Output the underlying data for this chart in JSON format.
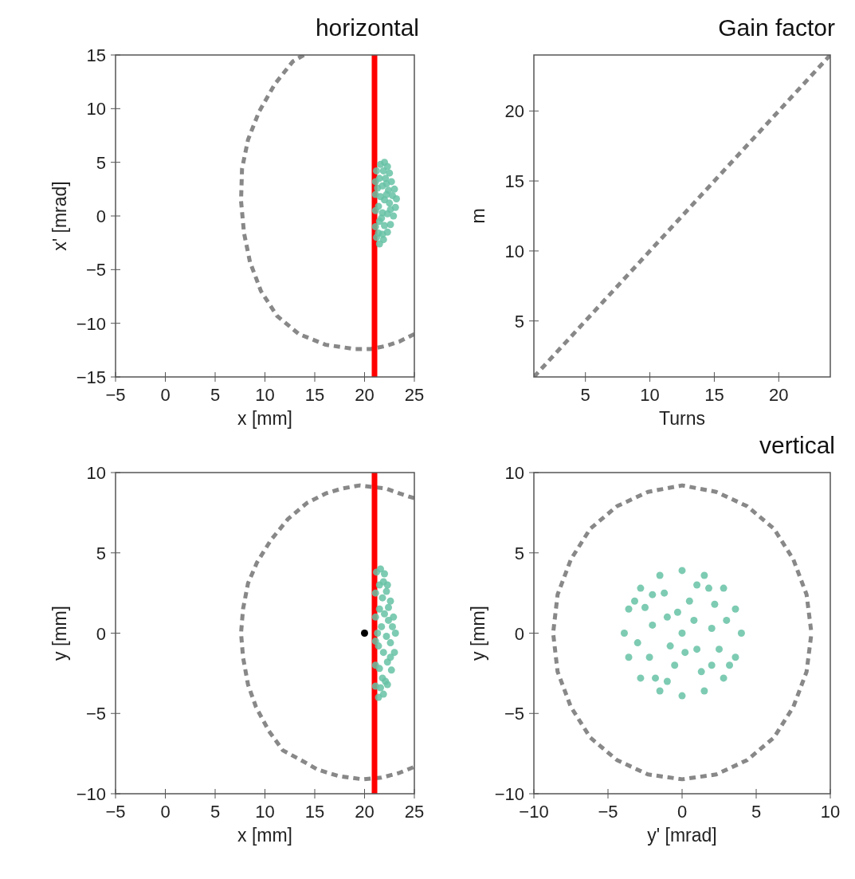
{
  "chart_data": [
    {
      "type": "scatter",
      "title": "horizontal",
      "xlabel": "x [mm]",
      "ylabel": "x' [mrad]",
      "xlim": [
        -5,
        25
      ],
      "ylim": [
        -15,
        15
      ],
      "xticks": [
        -5,
        0,
        5,
        10,
        15,
        20,
        25
      ],
      "yticks": [
        -15,
        -10,
        -5,
        0,
        5,
        10,
        15
      ],
      "grid": false,
      "marker": "circle",
      "line_style": "dashed",
      "ref_lines": [
        {
          "axis": "x",
          "value": 21,
          "color": "#ff0000"
        }
      ],
      "series": [
        {
          "type": "line",
          "marker": "none",
          "color": "#888888",
          "x": [
            13.9,
            12.8,
            11.0,
            9.4,
            8.3,
            7.7,
            7.6,
            7.9,
            8.5,
            9.6,
            11.2,
            13.4,
            16.1,
            19.0,
            20.6,
            22.2,
            23.5,
            25.0
          ],
          "values": [
            15,
            14.4,
            12.3,
            9.7,
            7.1,
            4.4,
            1.4,
            -1.6,
            -4.3,
            -7.0,
            -9.3,
            -11.0,
            -12.0,
            -12.4,
            -12.4,
            -12.1,
            -11.7,
            -11.0
          ]
        },
        {
          "color": "#66c2a5",
          "x": [
            21.2,
            21.6,
            22.0,
            22.3,
            22.5,
            22.7,
            23.0,
            23.2,
            23.1,
            22.9,
            22.6,
            22.3,
            21.9,
            21.5,
            21.2,
            21.1,
            21.1,
            21.1,
            21.1,
            21.5,
            21.8,
            22.1,
            22.4,
            21.6,
            22.0,
            22.5,
            22.8,
            21.4,
            21.8,
            22.3,
            21.5,
            22.0,
            21.4,
            21.8,
            22.6,
            21.3,
            21.9,
            22.2,
            21.7,
            22.2
          ],
          "values": [
            4.2,
            4.8,
            5.0,
            4.6,
            4.0,
            3.2,
            2.5,
            1.6,
            0.8,
            0.0,
            -0.8,
            -1.5,
            -2.2,
            -2.6,
            -2.0,
            -1.0,
            0.5,
            2.0,
            3.2,
            3.5,
            2.8,
            3.5,
            2.4,
            1.8,
            1.5,
            1.2,
            1.9,
            0.9,
            0.3,
            0.2,
            -0.5,
            -0.9,
            -1.6,
            -1.7,
            0.6,
            2.6,
            4.2,
            2.0,
            -0.2,
            3.0
          ]
        }
      ]
    },
    {
      "type": "line",
      "title": "Gain factor",
      "xlabel": "Turns",
      "ylabel": "m",
      "xlim": [
        1,
        24
      ],
      "ylim": [
        1,
        24
      ],
      "xticks": [
        5,
        10,
        15,
        20
      ],
      "yticks": [
        5,
        10,
        15,
        20
      ],
      "grid": false,
      "line_style": "dashed",
      "series": [
        {
          "color": "#888888",
          "x": [
            1,
            24
          ],
          "values": [
            1,
            24
          ]
        }
      ]
    },
    {
      "type": "scatter",
      "xlabel": "x [mm]",
      "ylabel": "y [mm]",
      "xlim": [
        -5,
        25
      ],
      "ylim": [
        -10,
        10
      ],
      "xticks": [
        -5,
        0,
        5,
        10,
        15,
        20,
        25
      ],
      "yticks": [
        -10,
        -5,
        0,
        5,
        10
      ],
      "grid": false,
      "marker": "circle",
      "line_style": "dashed",
      "ref_lines": [
        {
          "axis": "x",
          "value": 21,
          "color": "#ff0000"
        }
      ],
      "series": [
        {
          "type": "line",
          "marker": "none",
          "color": "#888888",
          "x": [
            25,
            23.5,
            22.2,
            19.5,
            17.7,
            16.1,
            14.2,
            12.3,
            10.6,
            9.2,
            8.3,
            7.8,
            7.6,
            7.8,
            8.3,
            9.1,
            10.4,
            11.8,
            13.6,
            15.3,
            17.4,
            19.8,
            21.7,
            23.5,
            24.9
          ],
          "values": [
            8.4,
            8.7,
            9.0,
            9.2,
            9.0,
            8.7,
            8.1,
            7.1,
            5.8,
            4.4,
            3.1,
            1.5,
            0.0,
            -1.5,
            -3.2,
            -4.6,
            -6.1,
            -7.3,
            -7.9,
            -8.5,
            -8.9,
            -9.1,
            -9.0,
            -8.7,
            -8.35
          ]
        },
        {
          "color": "#66c2a5",
          "x": [
            21.2,
            21.6,
            22.0,
            22.3,
            22.6,
            22.9,
            23.1,
            23.0,
            22.7,
            22.3,
            21.9,
            21.4,
            21.1,
            21.1,
            21.1,
            21.1,
            21.1,
            21.5,
            21.8,
            22.2,
            21.5,
            22.0,
            22.4,
            21.7,
            22.2,
            22.6,
            21.4,
            21.9,
            22.3,
            21.5,
            21.8,
            22.4,
            21.3,
            22.8,
            21.6,
            22.1,
            22.6,
            21.9
          ],
          "values": [
            3.8,
            4.0,
            3.7,
            3.0,
            2.0,
            1.0,
            0.0,
            -1.2,
            -2.3,
            -3.2,
            -3.8,
            -4.0,
            -3.3,
            -2.0,
            -0.5,
            1.0,
            2.5,
            3.0,
            2.2,
            2.6,
            1.5,
            1.2,
            0.8,
            0.4,
            -0.2,
            -0.6,
            -0.8,
            -1.2,
            -1.8,
            -2.2,
            -2.8,
            1.6,
            0.0,
            0.4,
            -3.4,
            -3.0,
            -1.5,
            3.2
          ]
        },
        {
          "color": "#000000",
          "x": [
            20
          ],
          "values": [
            0
          ]
        }
      ]
    },
    {
      "type": "scatter",
      "title": "vertical",
      "xlabel": "y' [mrad]",
      "ylabel": "y [mm]",
      "xlim": [
        -10,
        10
      ],
      "ylim": [
        -10,
        10
      ],
      "xticks": [
        -10,
        -5,
        0,
        5,
        10
      ],
      "yticks": [
        -10,
        -5,
        0,
        5,
        10
      ],
      "grid": false,
      "marker": "circle",
      "line_style": "dashed",
      "series": [
        {
          "type": "line",
          "marker": "none",
          "color": "#888888",
          "x": [
            8.7,
            8.4,
            7.5,
            6.2,
            4.4,
            2.3,
            0,
            -2.3,
            -4.4,
            -6.2,
            -7.5,
            -8.4,
            -8.7,
            -8.4,
            -7.5,
            -6.2,
            -4.4,
            -2.3,
            0,
            2.3,
            4.4,
            6.2,
            7.5,
            8.4,
            8.7
          ],
          "values": [
            0.2,
            2.4,
            4.6,
            6.5,
            7.9,
            8.8,
            9.2,
            8.8,
            7.9,
            6.5,
            4.6,
            2.4,
            0,
            -2.4,
            -4.6,
            -6.5,
            -7.9,
            -8.8,
            -9.1,
            -8.8,
            -7.9,
            -6.5,
            -4.6,
            -2.4,
            -0.2
          ]
        },
        {
          "color": "#66c2a5",
          "x": [
            0,
            -1.5,
            1.5,
            -2.8,
            2.8,
            -3.6,
            3.6,
            -3.9,
            4.0,
            -3.6,
            3.6,
            -2.8,
            2.8,
            -1.5,
            1.5,
            0,
            0,
            -1,
            1,
            -2,
            2,
            0.5,
            -0.5,
            -2.2,
            2.2,
            -1.2,
            1.3,
            3,
            -3,
            0.8,
            -0.8,
            2.5,
            -2.5,
            1.8,
            -1.8,
            0.2,
            -0.3,
            3.2,
            -3.2,
            1,
            -1,
            2,
            -2
          ],
          "values": [
            3.9,
            3.6,
            3.6,
            2.8,
            2.8,
            1.5,
            1.5,
            0,
            0,
            -1.5,
            -1.5,
            -2.8,
            -2.8,
            -3.6,
            -3.6,
            -3.9,
            0,
            1,
            -1,
            0.5,
            0.3,
            2,
            -2,
            -1.5,
            1.8,
            2.5,
            -2.4,
            0.8,
            -0.6,
            0.8,
            -0.8,
            -1,
            1.6,
            2.8,
            -2.8,
            -1.2,
            1.3,
            -2,
            2,
            3,
            -3,
            -2,
            2.4
          ]
        }
      ]
    }
  ]
}
